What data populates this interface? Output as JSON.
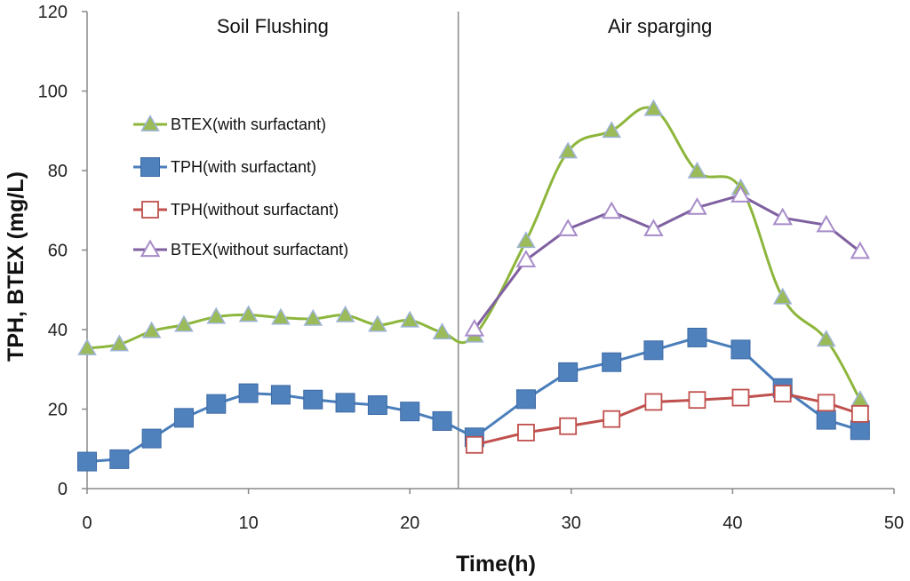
{
  "chart_data": {
    "type": "line",
    "title": "",
    "xlabel": "Time(h)",
    "ylabel": "TPH,  BTEX (mg/L)",
    "xlim": [
      0,
      50
    ],
    "ylim": [
      0,
      120
    ],
    "x_ticks": [
      "0",
      "10",
      "20",
      "30",
      "40",
      "50"
    ],
    "y_ticks": [
      "0",
      "20",
      "40",
      "60",
      "80",
      "100",
      "120"
    ],
    "divider_x": 23,
    "regions": [
      {
        "label": "Soil Flushing"
      },
      {
        "label": "Air sparging"
      }
    ],
    "legend_position": "left",
    "series": [
      {
        "name": "BTEX(with surfactant)",
        "color": "#8DB63C",
        "marker": "triangle-filled",
        "marker_fill": "#9BBB59",
        "smooth": true,
        "x": [
          0,
          2,
          4,
          6,
          8,
          10,
          12,
          14,
          16,
          18,
          20,
          22,
          24,
          27.2,
          29.8,
          32.5,
          35.1,
          37.8,
          40.5,
          43.1,
          45.8,
          47.9
        ],
        "y": [
          35.3,
          36.3,
          39.6,
          41.2,
          43.2,
          43.7,
          43.0,
          42.7,
          43.6,
          41.2,
          42.3,
          39.3,
          38.5,
          62.3,
          84.8,
          90.0,
          95.5,
          79.8,
          75.6,
          48.1,
          37.5,
          22.3
        ]
      },
      {
        "name": "TPH(with surfactant)",
        "color": "#4A7EBB",
        "marker": "square-filled",
        "marker_fill": "#4F81BD",
        "smooth": false,
        "x": [
          0,
          2,
          4,
          6,
          8,
          10,
          12,
          14,
          16,
          18,
          20,
          22,
          24,
          27.2,
          29.8,
          32.5,
          35.1,
          37.8,
          40.5,
          43.1,
          45.8,
          47.9
        ],
        "y": [
          6.8,
          7.4,
          12.6,
          17.8,
          21.3,
          24.0,
          23.6,
          22.4,
          21.6,
          21.0,
          19.4,
          17.0,
          12.9,
          22.5,
          29.3,
          31.8,
          34.8,
          38.0,
          35.0,
          25.3,
          17.3,
          14.7
        ]
      },
      {
        "name": "TPH(without surfactant)",
        "color": "#C0504D",
        "marker": "square-open",
        "marker_fill": "#ffffff",
        "smooth": false,
        "x": [
          24,
          27.2,
          29.8,
          32.5,
          35.1,
          37.8,
          40.5,
          43.1,
          45.8,
          47.9
        ],
        "y": [
          11.0,
          14.1,
          15.7,
          17.5,
          21.8,
          22.3,
          22.9,
          23.9,
          21.6,
          18.8
        ]
      },
      {
        "name": "BTEX(without surfactant)",
        "color": "#7F60A0",
        "marker": "triangle-open",
        "marker_fill": "#ffffff",
        "smooth": false,
        "x": [
          24,
          27.2,
          29.8,
          32.5,
          35.1,
          37.8,
          40.5,
          43.1,
          45.8,
          47.9
        ],
        "y": [
          40.1,
          57.5,
          65.3,
          69.7,
          65.3,
          70.7,
          73.8,
          68.1,
          66.3,
          59.6
        ]
      }
    ]
  }
}
